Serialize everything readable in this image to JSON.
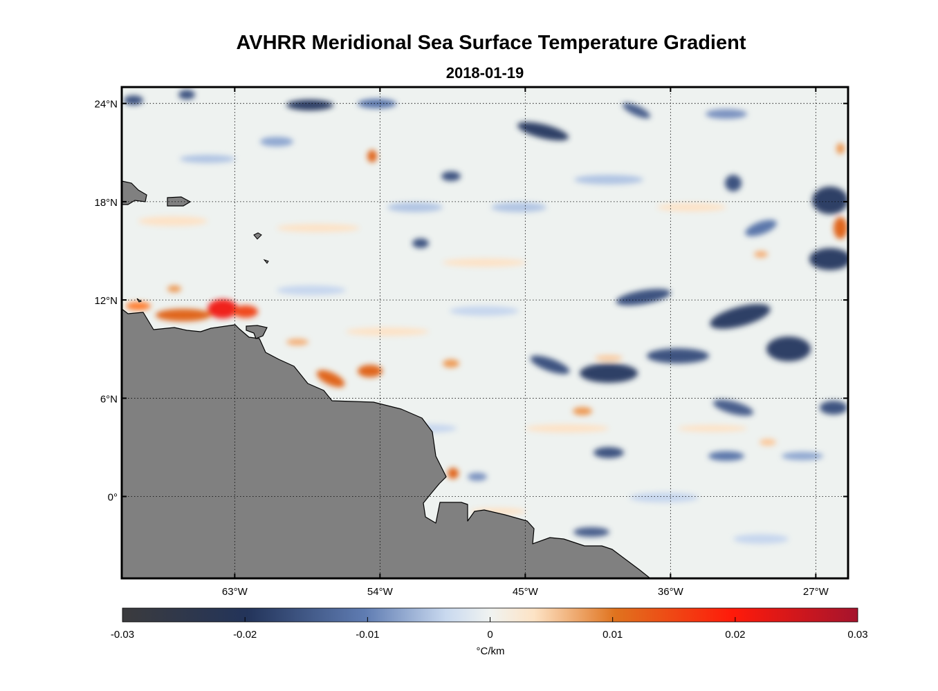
{
  "title": "AVHRR Meridional Sea Surface Temperature Gradient",
  "subtitle": "2018-01-19",
  "lat_labels": [
    {
      "value": 24,
      "label": "24°N"
    },
    {
      "value": 18,
      "label": "18°N"
    },
    {
      "value": 12,
      "label": "12°N"
    },
    {
      "value": 6,
      "label": "6°N"
    },
    {
      "value": 0,
      "label": "0°"
    }
  ],
  "lon_labels": [
    {
      "value": -63,
      "label": "63°W"
    },
    {
      "value": -54,
      "label": "54°W"
    },
    {
      "value": -45,
      "label": "45°W"
    },
    {
      "value": -36,
      "label": "36°W"
    },
    {
      "value": -27,
      "label": "27°W"
    }
  ],
  "map_extent": {
    "lon_min": -70,
    "lon_max": -25,
    "lat_min": -5,
    "lat_max": 25
  },
  "colorbar": {
    "min": -0.03,
    "max": 0.03,
    "ticks": [
      "-0.03",
      "-0.02",
      "-0.01",
      "0",
      "0.01",
      "0.02",
      "0.03"
    ],
    "unit_label": "°C/km"
  },
  "colors": {
    "land": "#808080",
    "ocean_background": "#eef2f0",
    "negative_strong": "#2e3f66",
    "negative_weak": "#c6d6ee",
    "positive_weak": "#fde2c6",
    "positive_strong": "#e0661c",
    "positive_max": "#f0221a"
  }
}
